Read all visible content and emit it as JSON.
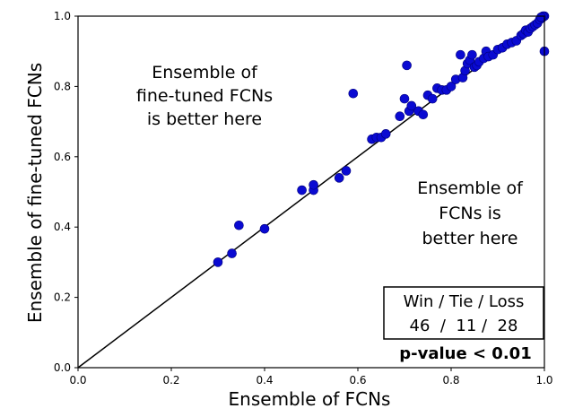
{
  "chart_data": {
    "type": "scatter",
    "title": "",
    "xlabel": "Ensemble of FCNs",
    "ylabel": "Ensemble of fine-tuned FCNs",
    "xlim": [
      0.0,
      1.0
    ],
    "ylim": [
      0.0,
      1.0
    ],
    "xticks": [
      "0.0",
      "0.2",
      "0.4",
      "0.6",
      "0.8",
      "1.0"
    ],
    "yticks": [
      "0.0",
      "0.2",
      "0.4",
      "0.6",
      "0.8",
      "1.0"
    ],
    "grid": false,
    "marker_color": "#0a0ad2",
    "reference_line": "y = x",
    "points": [
      {
        "x": 0.3,
        "y": 0.3
      },
      {
        "x": 0.33,
        "y": 0.325
      },
      {
        "x": 0.345,
        "y": 0.405
      },
      {
        "x": 0.4,
        "y": 0.395
      },
      {
        "x": 0.48,
        "y": 0.505
      },
      {
        "x": 0.505,
        "y": 0.505
      },
      {
        "x": 0.505,
        "y": 0.52
      },
      {
        "x": 0.56,
        "y": 0.54
      },
      {
        "x": 0.575,
        "y": 0.56
      },
      {
        "x": 0.59,
        "y": 0.78
      },
      {
        "x": 0.63,
        "y": 0.65
      },
      {
        "x": 0.64,
        "y": 0.655
      },
      {
        "x": 0.65,
        "y": 0.655
      },
      {
        "x": 0.66,
        "y": 0.665
      },
      {
        "x": 0.69,
        "y": 0.715
      },
      {
        "x": 0.7,
        "y": 0.765
      },
      {
        "x": 0.705,
        "y": 0.86
      },
      {
        "x": 0.71,
        "y": 0.73
      },
      {
        "x": 0.715,
        "y": 0.745
      },
      {
        "x": 0.73,
        "y": 0.73
      },
      {
        "x": 0.74,
        "y": 0.72
      },
      {
        "x": 0.75,
        "y": 0.775
      },
      {
        "x": 0.76,
        "y": 0.765
      },
      {
        "x": 0.77,
        "y": 0.795
      },
      {
        "x": 0.78,
        "y": 0.79
      },
      {
        "x": 0.79,
        "y": 0.79
      },
      {
        "x": 0.8,
        "y": 0.8
      },
      {
        "x": 0.81,
        "y": 0.82
      },
      {
        "x": 0.82,
        "y": 0.89
      },
      {
        "x": 0.825,
        "y": 0.825
      },
      {
        "x": 0.83,
        "y": 0.845
      },
      {
        "x": 0.835,
        "y": 0.865
      },
      {
        "x": 0.84,
        "y": 0.875
      },
      {
        "x": 0.845,
        "y": 0.89
      },
      {
        "x": 0.85,
        "y": 0.855
      },
      {
        "x": 0.855,
        "y": 0.86
      },
      {
        "x": 0.86,
        "y": 0.87
      },
      {
        "x": 0.87,
        "y": 0.88
      },
      {
        "x": 0.875,
        "y": 0.9
      },
      {
        "x": 0.88,
        "y": 0.885
      },
      {
        "x": 0.89,
        "y": 0.89
      },
      {
        "x": 0.9,
        "y": 0.905
      },
      {
        "x": 0.91,
        "y": 0.91
      },
      {
        "x": 0.92,
        "y": 0.92
      },
      {
        "x": 0.93,
        "y": 0.925
      },
      {
        "x": 0.94,
        "y": 0.93
      },
      {
        "x": 0.95,
        "y": 0.945
      },
      {
        "x": 0.955,
        "y": 0.95
      },
      {
        "x": 0.96,
        "y": 0.96
      },
      {
        "x": 0.965,
        "y": 0.955
      },
      {
        "x": 0.97,
        "y": 0.965
      },
      {
        "x": 0.975,
        "y": 0.97
      },
      {
        "x": 0.98,
        "y": 0.975
      },
      {
        "x": 0.985,
        "y": 0.98
      },
      {
        "x": 0.99,
        "y": 0.99
      },
      {
        "x": 0.995,
        "y": 0.995
      },
      {
        "x": 1.0,
        "y": 1.0
      },
      {
        "x": 0.997,
        "y": 1.0
      },
      {
        "x": 0.993,
        "y": 0.997
      },
      {
        "x": 1.0,
        "y": 0.9
      }
    ],
    "annotations": {
      "upper_left": [
        "Ensemble of",
        "fine-tuned FCNs",
        "is better here"
      ],
      "lower_right": [
        "Ensemble of",
        "FCNs is",
        "better here"
      ]
    },
    "stats_box": {
      "header": "Win / Tie / Loss",
      "values": "46  /  11 /  28",
      "pvalue": "p-value < 0.01"
    }
  }
}
